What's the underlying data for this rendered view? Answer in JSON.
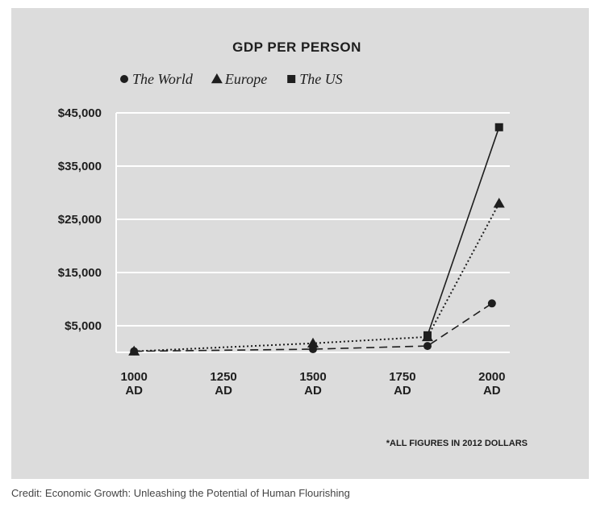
{
  "chart_data": {
    "type": "line",
    "title": "GDP PER PERSON",
    "y_tick_labels": [
      "$45,000",
      "$35,000",
      "$25,000",
      "$15,000",
      "$5,000"
    ],
    "y_tick_values": [
      45000,
      35000,
      25000,
      15000,
      5000
    ],
    "x_tick_labels": [
      {
        "line1": "1000",
        "line2": "AD"
      },
      {
        "line1": "1250",
        "line2": "AD"
      },
      {
        "line1": "1500",
        "line2": "AD"
      },
      {
        "line1": "1750",
        "line2": "AD"
      },
      {
        "line1": "2000",
        "line2": "AD"
      }
    ],
    "x_tick_values": [
      1000,
      1250,
      1500,
      1750,
      2000
    ],
    "xlim": [
      950,
      2050
    ],
    "ylim": [
      0,
      45000
    ],
    "grid": "horizontal",
    "legend_position": "top",
    "series": [
      {
        "name": "The World",
        "marker": "circle",
        "line_style": "dashed",
        "points": [
          {
            "x": 1000,
            "y": 200
          },
          {
            "x": 1500,
            "y": 600
          },
          {
            "x": 1820,
            "y": 1200
          },
          {
            "x": 2000,
            "y": 9200
          }
        ]
      },
      {
        "name": "Europe",
        "marker": "triangle",
        "line_style": "dotted",
        "points": [
          {
            "x": 1000,
            "y": 200
          },
          {
            "x": 1500,
            "y": 1700
          },
          {
            "x": 1820,
            "y": 2900
          },
          {
            "x": 2020,
            "y": 28000
          }
        ]
      },
      {
        "name": "The US",
        "marker": "square",
        "line_style": "solid",
        "points": [
          {
            "x": 1820,
            "y": 3200
          },
          {
            "x": 2020,
            "y": 42300
          }
        ]
      }
    ],
    "note": "*ALL FIGURES IN 2012 DOLLARS"
  },
  "credit": "Credit: Economic Growth: Unleashing the Potential of Human Flourishing",
  "colors": {
    "panel": "#dcdcdc",
    "ink": "#1e1e1e",
    "grid": "#ffffff"
  }
}
